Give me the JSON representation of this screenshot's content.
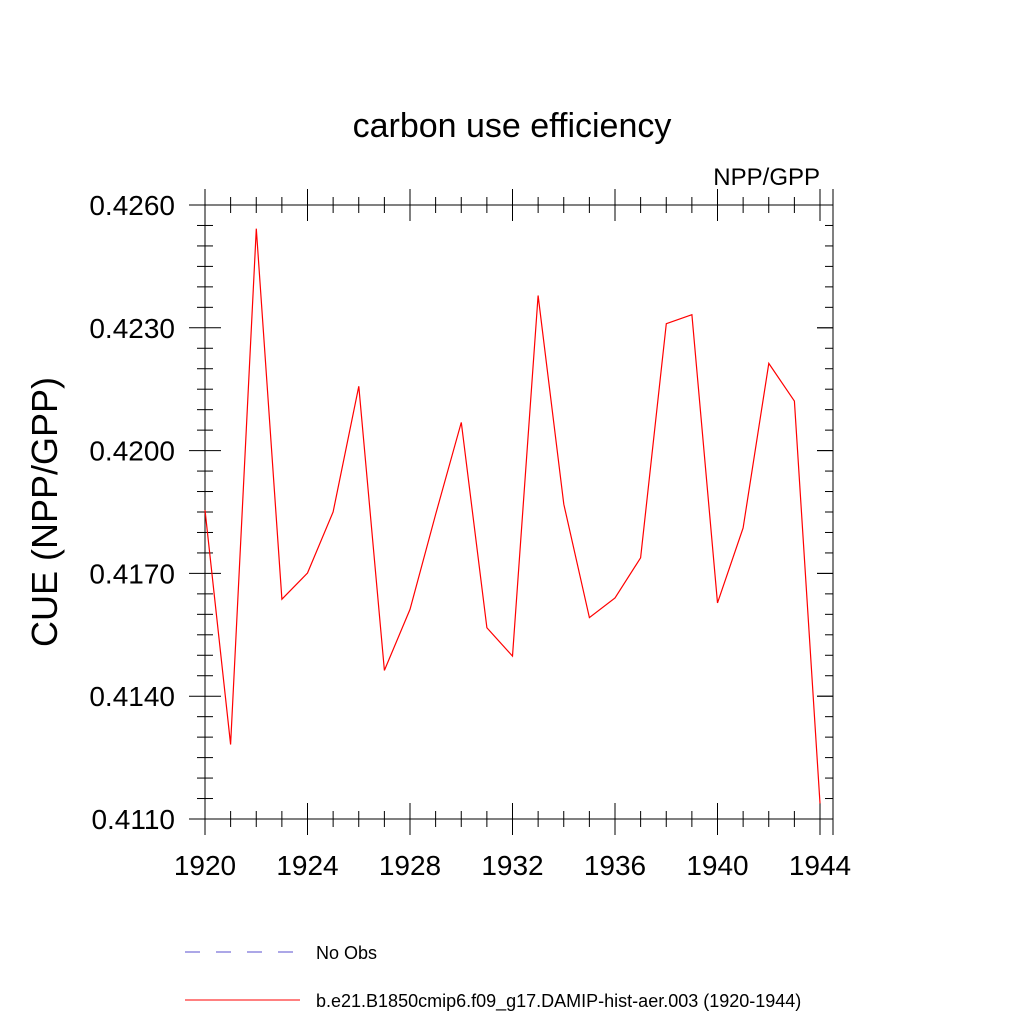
{
  "chart_data": {
    "type": "line",
    "title": "carbon use efficiency",
    "subtitle_right": "NPP/GPP",
    "xlabel": "",
    "ylabel": "CUE  (NPP/GPP)",
    "xlim": [
      1920,
      1944
    ],
    "ylim": [
      0.411,
      0.426
    ],
    "x_ticks": [
      1920,
      1924,
      1928,
      1932,
      1936,
      1940,
      1944
    ],
    "x_tick_labels": [
      "1920",
      "1924",
      "1928",
      "1932",
      "1936",
      "1940",
      "1944"
    ],
    "y_ticks": [
      0.411,
      0.414,
      0.417,
      0.42,
      0.423,
      0.426
    ],
    "y_tick_labels": [
      "0.4110",
      "0.4140",
      "0.4170",
      "0.4200",
      "0.4230",
      "0.4260"
    ],
    "y_minor_step": 0.0005,
    "x_minor_step": 1,
    "grid": false,
    "legend_position": "bottom",
    "series": [
      {
        "name": "b.e21.B1850cmip6.f09_g17.DAMIP-hist-aer.003 (1920-1944)",
        "color": "#ff0000",
        "style": "solid",
        "x": [
          1920,
          1921,
          1922,
          1923,
          1924,
          1925,
          1926,
          1927,
          1928,
          1929,
          1930,
          1931,
          1932,
          1933,
          1934,
          1935,
          1936,
          1937,
          1938,
          1939,
          1940,
          1941,
          1942,
          1943,
          1944
        ],
        "y": [
          0.41855,
          0.41282,
          0.42542,
          0.41637,
          0.41701,
          0.4185,
          0.42157,
          0.41463,
          0.41612,
          0.41844,
          0.42069,
          0.41567,
          0.41498,
          0.42379,
          0.41869,
          0.41592,
          0.4164,
          0.41738,
          0.4231,
          0.42332,
          0.41628,
          0.41811,
          0.42213,
          0.42121,
          0.41138
        ]
      }
    ],
    "legend": [
      {
        "label": "No Obs",
        "color": "#5a4fcf",
        "style": "dashed"
      },
      {
        "label": "b.e21.B1850cmip6.f09_g17.DAMIP-hist-aer.003 (1920-1944)",
        "color": "#ff0000",
        "style": "solid"
      }
    ]
  }
}
